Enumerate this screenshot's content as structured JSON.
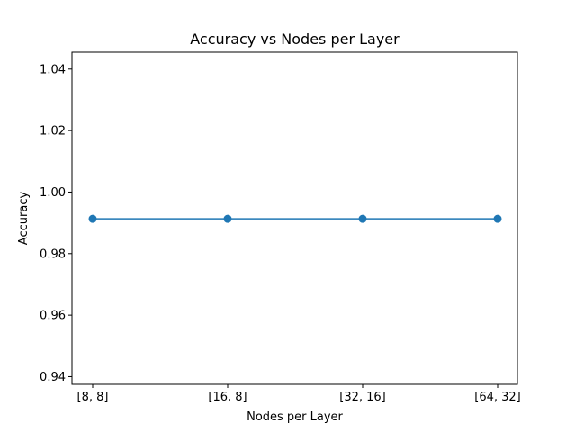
{
  "chart_data": {
    "type": "line",
    "title": "Accuracy vs Nodes per Layer",
    "xlabel": "Nodes per Layer",
    "ylabel": "Accuracy",
    "categories": [
      "[8, 8]",
      "[16, 8]",
      "[32, 16]",
      "[64, 32]"
    ],
    "series": [
      {
        "values": [
          0.9913,
          0.9913,
          0.9913,
          0.9913
        ],
        "color": "#1f77b4",
        "marker": "circle"
      }
    ],
    "ylim": [
      0.9375,
      1.0455
    ],
    "yticks": [
      0.94,
      0.96,
      0.98,
      1.0,
      1.02,
      1.04
    ],
    "ytick_labels": [
      "0.94",
      "0.96",
      "0.98",
      "1.00",
      "1.02",
      "1.04"
    ],
    "grid": false,
    "legend": false
  }
}
